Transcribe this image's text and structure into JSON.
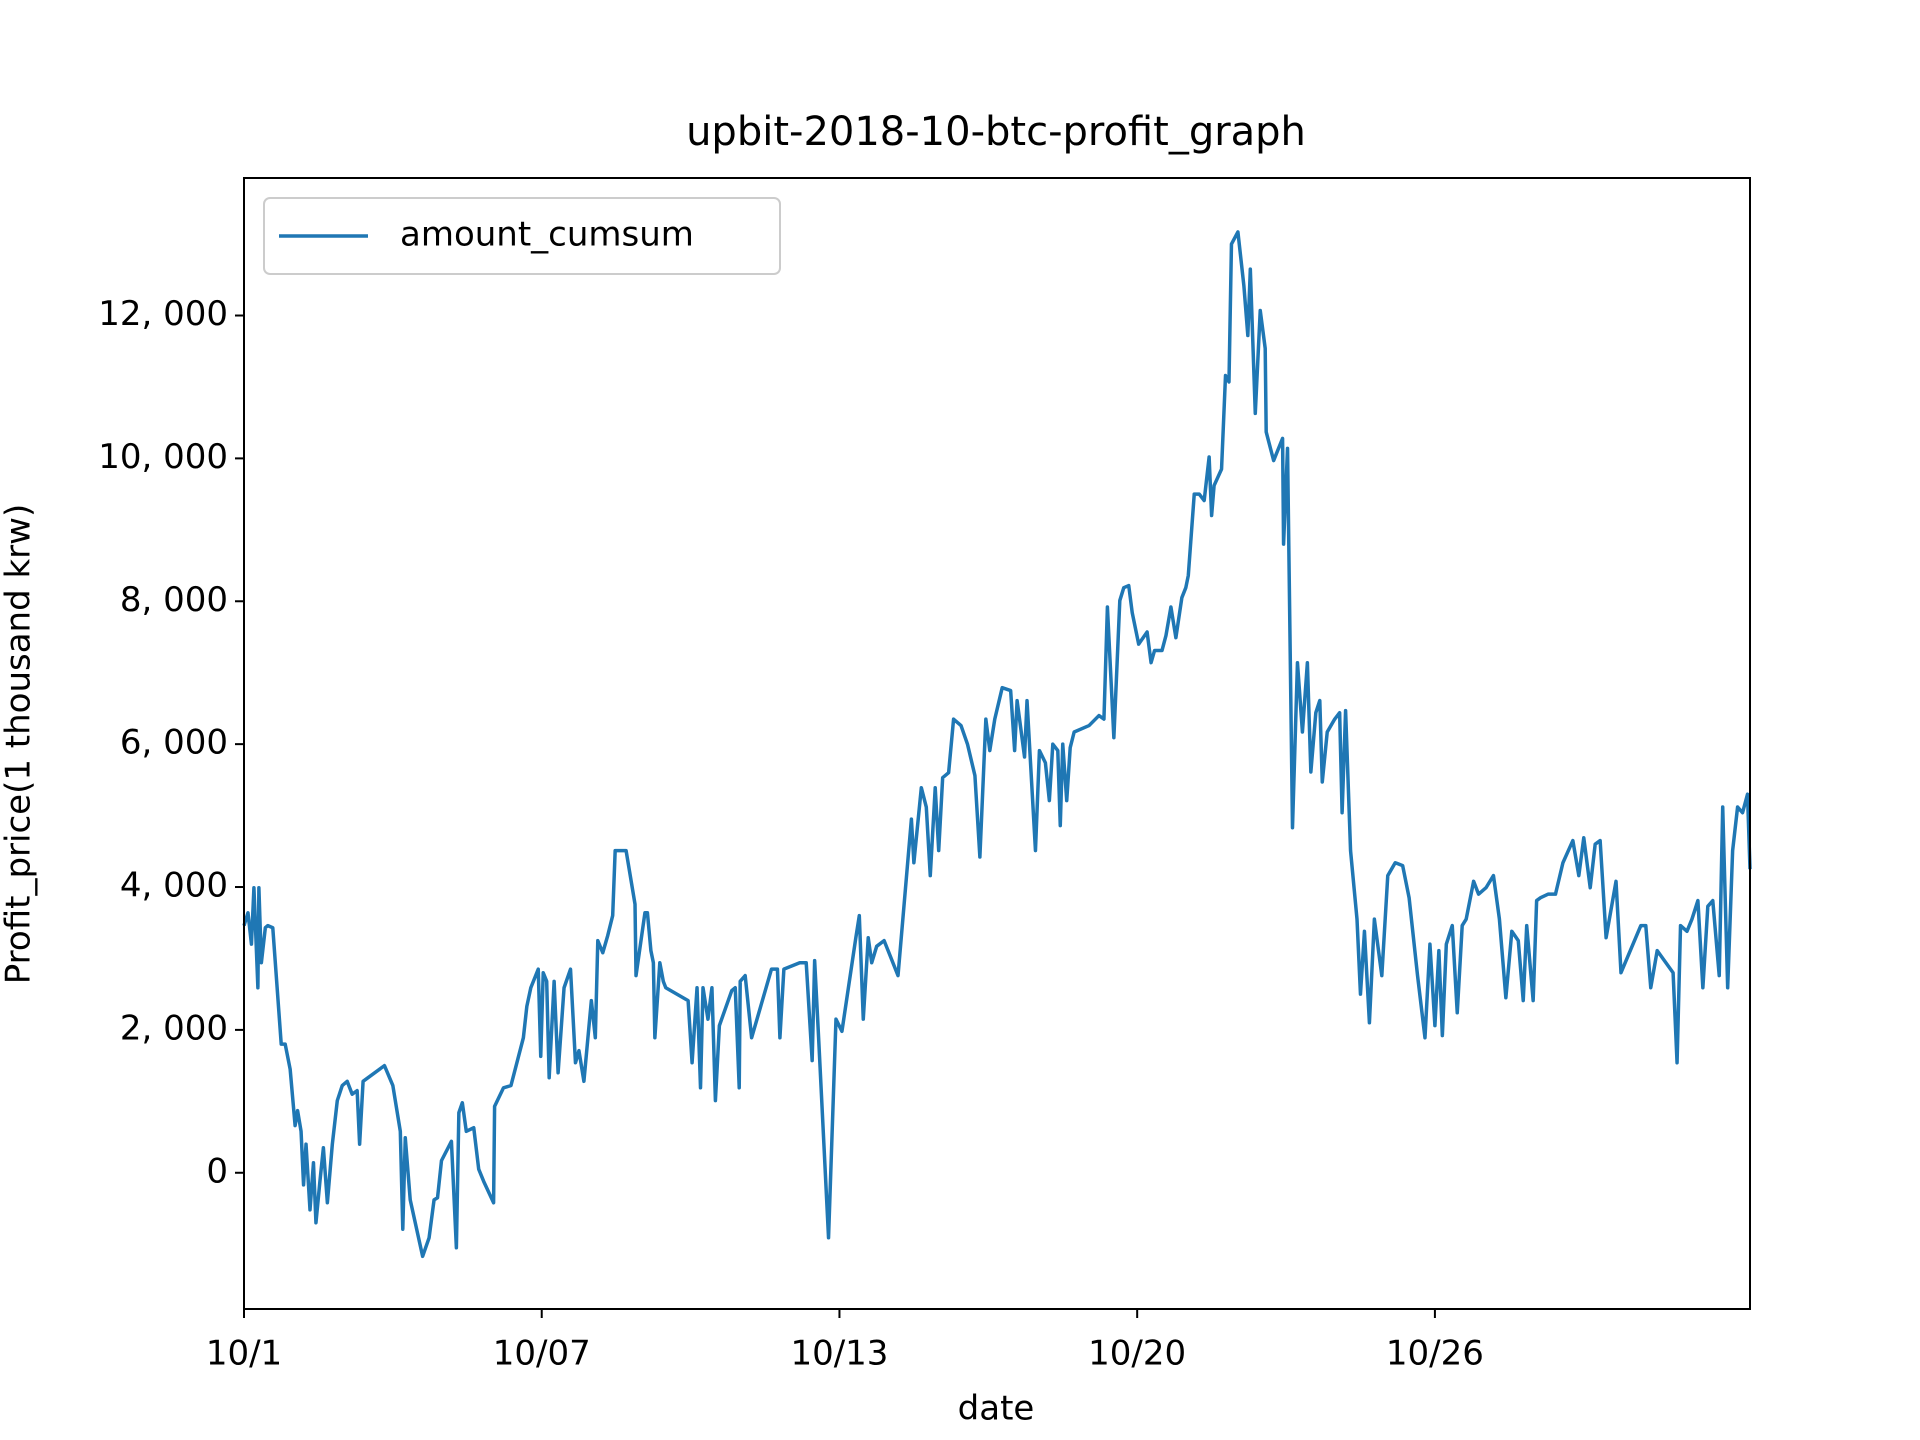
{
  "chart_data": {
    "type": "line",
    "title": "upbit-2018-10-btc-profit_graph",
    "xlabel": "date",
    "ylabel": "Profit_price(1 thousand krw)",
    "legend": "upper left",
    "xlim": [
      1,
      31.35
    ],
    "ylim": [
      -1907,
      13925
    ],
    "xticks": [
      {
        "value": 1,
        "label": "10/1"
      },
      {
        "value": 7,
        "label": "10/07"
      },
      {
        "value": 13,
        "label": "10/13"
      },
      {
        "value": 19,
        "label": "10/20"
      },
      {
        "value": 25,
        "label": "10/26"
      }
    ],
    "yticks": [
      0,
      {
        "value": 2000,
        "label": "2, 000"
      },
      {
        "value": 4000,
        "label": "4, 000"
      },
      {
        "value": 6000,
        "label": "6, 000"
      },
      {
        "value": 8000,
        "label": "8, 000"
      },
      {
        "value": 10000,
        "label": "10, 000"
      },
      {
        "value": 12000,
        "label": "12, 000"
      }
    ],
    "x": [
      1.0,
      1.08,
      1.15,
      1.2,
      1.28,
      1.3,
      1.35,
      1.43,
      1.48,
      1.58,
      1.75,
      1.83,
      1.93,
      2.03,
      2.08,
      2.15,
      2.2,
      2.25,
      2.33,
      2.4,
      2.45,
      2.53,
      2.6,
      2.68,
      2.78,
      2.88,
      2.98,
      3.08,
      3.18,
      3.28,
      3.33,
      3.4,
      3.83,
      4.0,
      4.15,
      4.2,
      4.25,
      4.35,
      4.6,
      4.73,
      4.83,
      4.9,
      4.98,
      5.18,
      5.28,
      5.33,
      5.4,
      5.48,
      5.63,
      5.73,
      5.83,
      6.03,
      6.05,
      6.23,
      6.38,
      6.63,
      6.7,
      6.78,
      6.93,
      6.98,
      7.03,
      7.1,
      7.15,
      7.25,
      7.33,
      7.45,
      7.58,
      7.68,
      7.75,
      7.85,
      8.0,
      8.08,
      8.13,
      8.23,
      8.33,
      8.43,
      8.48,
      8.58,
      8.7,
      8.88,
      8.9,
      9.08,
      9.13,
      9.2,
      9.25,
      9.28,
      9.38,
      9.45,
      9.5,
      9.95,
      10.03,
      10.13,
      10.2,
      10.25,
      10.35,
      10.43,
      10.5,
      10.58,
      10.83,
      10.9,
      10.98,
      11.0,
      11.1,
      11.23,
      11.63,
      11.75,
      11.8,
      11.88,
      12.2,
      12.33,
      12.45,
      12.5,
      12.58,
      12.78,
      12.93,
      13.05,
      13.33,
      13.4,
      13.48,
      13.58,
      13.65,
      13.75,
      13.9,
      14.18,
      14.45,
      14.5,
      14.65,
      14.75,
      14.83,
      14.93,
      15.0,
      15.08,
      15.2,
      15.3,
      15.45,
      15.58,
      15.73,
      15.83,
      15.95,
      16.03,
      16.13,
      16.28,
      16.45,
      16.53,
      16.58,
      16.73,
      16.78,
      16.95,
      17.03,
      17.15,
      17.23,
      17.3,
      17.4,
      17.45,
      17.5,
      17.58,
      17.65,
      17.73,
      18.03,
      18.23,
      18.33,
      18.4,
      18.53,
      18.65,
      18.73,
      18.83,
      18.9,
      19.03,
      19.2,
      19.28,
      19.35,
      19.5,
      19.58,
      19.68,
      19.78,
      19.9,
      19.98,
      20.03,
      20.15,
      20.25,
      20.35,
      20.45,
      20.5,
      20.55,
      20.7,
      20.78,
      20.85,
      20.9,
      21.03,
      21.15,
      21.23,
      21.28,
      21.38,
      21.48,
      21.58,
      21.6,
      21.75,
      21.93,
      21.95,
      22.03,
      22.13,
      22.23,
      22.33,
      22.43,
      22.5,
      22.6,
      22.68,
      22.73,
      22.83,
      22.98,
      23.08,
      23.13,
      23.2,
      23.3,
      23.43,
      23.5,
      23.58,
      23.68,
      23.78,
      23.93,
      24.05,
      24.2,
      24.35,
      24.48,
      24.65,
      24.8,
      24.9,
      25.0,
      25.08,
      25.15,
      25.23,
      25.35,
      25.45,
      25.55,
      25.63,
      25.78,
      25.88,
      26.03,
      26.18,
      26.3,
      26.43,
      26.55,
      26.68,
      26.78,
      26.85,
      26.98,
      27.05,
      27.13,
      27.28,
      27.43,
      27.58,
      27.78,
      27.9,
      28.0,
      28.13,
      28.23,
      28.33,
      28.45,
      28.65,
      28.75,
      29.15,
      29.25,
      29.35,
      29.48,
      29.8,
      29.88,
      29.95,
      30.08,
      30.18,
      30.3,
      30.4,
      30.5,
      30.6,
      30.73,
      30.8,
      30.9,
      31.0,
      31.1,
      31.2,
      31.3,
      31.35
    ],
    "series": [
      {
        "name": "amount_cumsum",
        "color": "#1f77b4",
        "values": [
          3460,
          3640,
          3200,
          3990,
          2590,
          3990,
          2940,
          3430,
          3460,
          3430,
          1800,
          1800,
          1450,
          660,
          870,
          580,
          -170,
          400,
          -520,
          140,
          -700,
          -120,
          350,
          -420,
          400,
          1010,
          1220,
          1280,
          1100,
          1150,
          400,
          1280,
          1500,
          1220,
          580,
          -790,
          490,
          -380,
          -1170,
          -910,
          -380,
          -350,
          170,
          440,
          -1050,
          840,
          980,
          580,
          630,
          50,
          -120,
          -420,
          930,
          1190,
          1220,
          1890,
          2330,
          2590,
          2850,
          1630,
          2800,
          2680,
          1330,
          2680,
          1400,
          2590,
          2850,
          1540,
          1710,
          1280,
          2410,
          1890,
          3250,
          3080,
          3320,
          3600,
          4510,
          4510,
          4510,
          3760,
          2760,
          3640,
          3640,
          3110,
          2940,
          1890,
          2940,
          2680,
          2590,
          2410,
          1540,
          2590,
          1190,
          2590,
          2150,
          2590,
          1010,
          2060,
          2550,
          2590,
          1190,
          2680,
          2760,
          1890,
          2850,
          2850,
          1890,
          2850,
          2940,
          2940,
          1570,
          2970,
          1890,
          -910,
          2150,
          1980,
          3290,
          3600,
          2150,
          3290,
          2940,
          3170,
          3250,
          2760,
          4950,
          4340,
          5390,
          5120,
          4160,
          5390,
          4510,
          5530,
          5600,
          6350,
          6260,
          6000,
          5560,
          4420,
          6350,
          5910,
          6350,
          6790,
          6750,
          5910,
          6610,
          5820,
          6610,
          4510,
          5910,
          5740,
          5210,
          6000,
          5910,
          4860,
          6000,
          5210,
          5950,
          6170,
          6260,
          6400,
          6350,
          7920,
          6090,
          8010,
          8190,
          8220,
          7840,
          7400,
          7570,
          7140,
          7310,
          7310,
          7520,
          7920,
          7490,
          8050,
          8190,
          8360,
          9500,
          9500,
          9410,
          10020,
          9200,
          9620,
          9850,
          11160,
          11070,
          13000,
          13170,
          12420,
          11720,
          12650,
          10630,
          12070,
          11540,
          10370,
          9970,
          10280,
          8800,
          10140,
          4830,
          7140,
          6170,
          7140,
          5610,
          6440,
          6610,
          5470,
          6170,
          6350,
          6440,
          5040,
          6470,
          4510,
          3550,
          2500,
          3380,
          2100,
          3550,
          2760,
          4160,
          4340,
          4300,
          3850,
          2760,
          1890,
          3200,
          2060,
          3110,
          1920,
          3200,
          3460,
          2240,
          3460,
          3550,
          4080,
          3900,
          3990,
          4160,
          3550,
          2450,
          3380,
          3250,
          2410,
          3460,
          2410,
          3810,
          3850,
          3900,
          3900,
          4340,
          4650,
          4160,
          4690,
          3990,
          4600,
          4650,
          3290,
          4080,
          2800,
          3460,
          3460,
          2590,
          3110,
          2800,
          1540,
          3460,
          3380,
          3550,
          3810,
          2590,
          3730,
          3810,
          2760,
          5120,
          2590,
          4510,
          5120,
          5040,
          5300,
          4250
        ]
      }
    ]
  }
}
